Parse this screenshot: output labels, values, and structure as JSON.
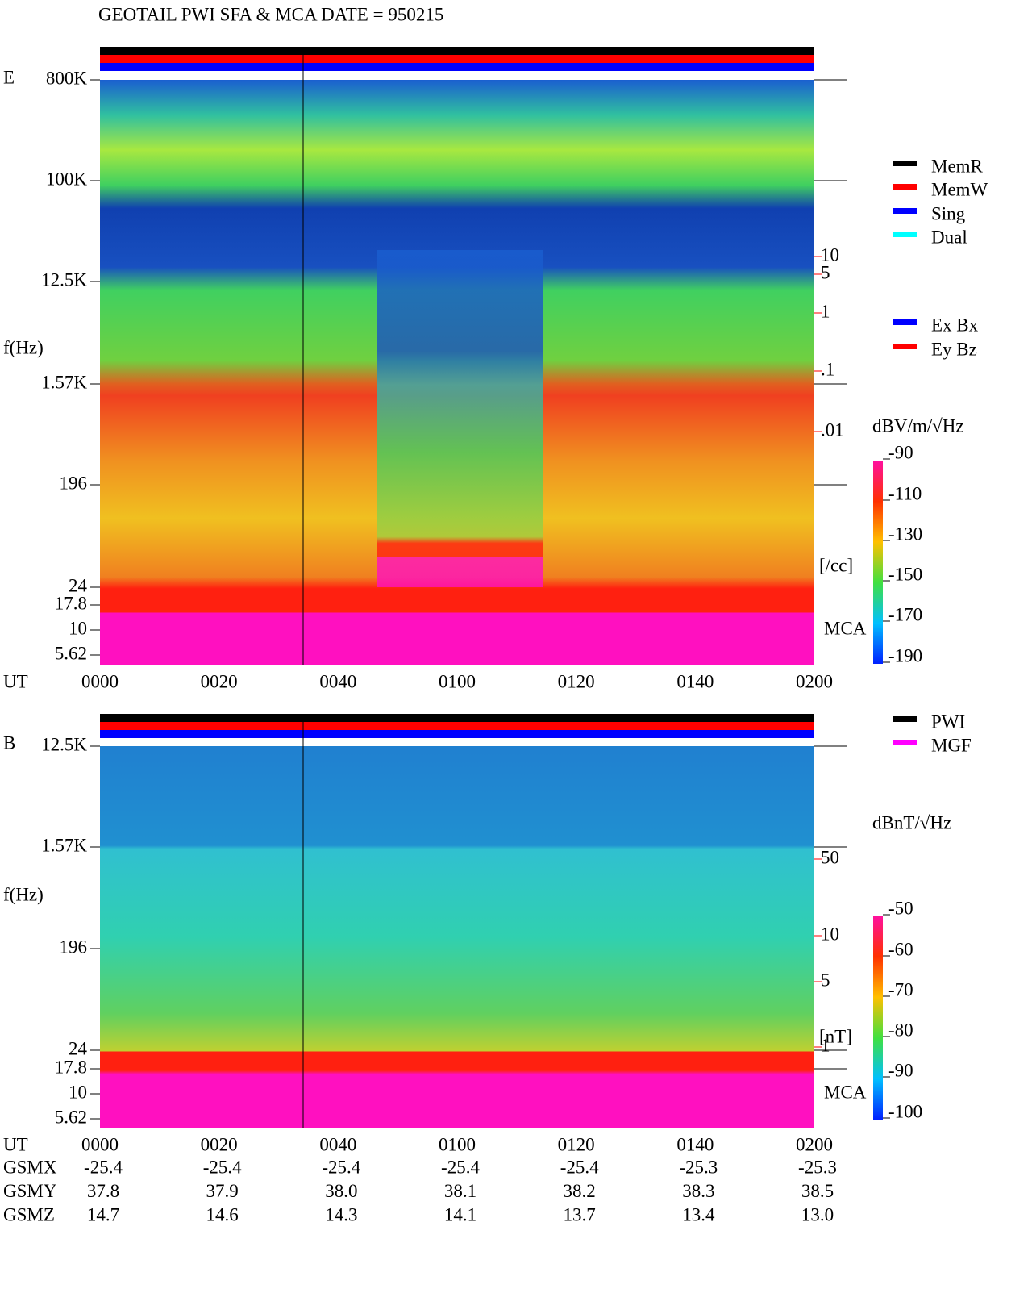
{
  "title": "GEOTAIL  PWI SFA & MCA   DATE = 950215",
  "panel_e": {
    "label": "E",
    "axis_label": "f(Hz)",
    "time_label": "UT",
    "freq_ticks": [
      "800K",
      "100K",
      "12.5K",
      "1.57K",
      "196",
      "24",
      "17.8",
      "10",
      "5.62"
    ],
    "time_ticks": [
      "0000",
      "0020",
      "0040",
      "0100",
      "0120",
      "0140",
      "0200"
    ],
    "density_ticks": [
      "10",
      "5",
      "1",
      ".1",
      ".01"
    ],
    "density_unit": "[/cc]",
    "mca_label": "MCA",
    "colorbar_unit": "dBV/m/√Hz",
    "colorbar_ticks": [
      "-90",
      "-110",
      "-130",
      "-150",
      "-170",
      "-190"
    ],
    "legend": [
      {
        "name": "MemR",
        "color": "#000000"
      },
      {
        "name": "MemW",
        "color": "#ff0000"
      },
      {
        "name": "Sing",
        "color": "#0000ff"
      },
      {
        "name": "Dual",
        "color": "#00ffff"
      }
    ],
    "legend2": [
      {
        "name": "Ex Bx",
        "color": "#0000ff"
      },
      {
        "name": "Ey Bz",
        "color": "#ff0000"
      }
    ]
  },
  "panel_b": {
    "label": "B",
    "axis_label": "f(Hz)",
    "time_label": "UT",
    "freq_ticks": [
      "12.5K",
      "1.57K",
      "196",
      "24",
      "17.8",
      "10",
      "5.62"
    ],
    "time_ticks": [
      "0000",
      "0020",
      "0040",
      "0100",
      "0120",
      "0140",
      "0200"
    ],
    "density_ticks": [
      "50",
      "10",
      "5",
      "1"
    ],
    "density_unit": "[nT]",
    "mca_label": "MCA",
    "colorbar_unit": "dBnT/√Hz",
    "colorbar_ticks": [
      "-50",
      "-60",
      "-70",
      "-80",
      "-90",
      "-100"
    ],
    "legend": [
      {
        "name": "PWI",
        "color": "#000000"
      },
      {
        "name": "MGF",
        "color": "#ff00ff"
      }
    ]
  },
  "orbit": [
    {
      "label": "GSMX",
      "values": [
        "-25.4",
        "-25.4",
        "-25.4",
        "-25.4",
        "-25.4",
        "-25.3",
        "-25.3"
      ]
    },
    {
      "label": "GSMY",
      "values": [
        "37.8",
        "37.9",
        "38.0",
        "38.1",
        "38.2",
        "38.3",
        "38.5"
      ]
    },
    {
      "label": "GSMZ",
      "values": [
        "14.7",
        "14.6",
        "14.3",
        "14.1",
        "13.7",
        "13.4",
        "13.0"
      ]
    }
  ]
}
